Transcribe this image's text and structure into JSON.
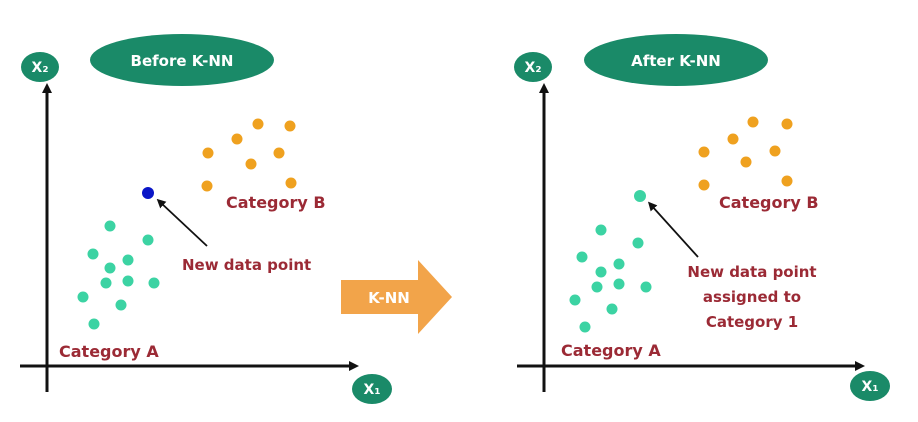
{
  "colors": {
    "pill": "#1a8a68",
    "category_a_point": "#3cd3a3",
    "category_b_point": "#efa11f",
    "new_point_before": "#0a16c7",
    "label_text": "#9b2a35",
    "center_arrow": "#f2a44a",
    "axis": "#111111"
  },
  "icons": {
    "center_arrow": "arrow-right-icon",
    "pointer": "pointer-arrow-icon"
  },
  "center_arrow_label": "K-NN",
  "before_panel": {
    "title": "Before K-NN",
    "x_axis_label": "X₁",
    "y_axis_label": "X₂",
    "category_a_label": "Category A",
    "category_b_label": "Category B",
    "new_point_label": [
      "New data point"
    ]
  },
  "after_panel": {
    "title": "After K-NN",
    "x_axis_label": "X₁",
    "y_axis_label": "X₂",
    "category_a_label": "Category A",
    "category_b_label": "Category B",
    "new_point_label": [
      "New data point",
      "assigned to",
      "Category 1"
    ]
  }
}
